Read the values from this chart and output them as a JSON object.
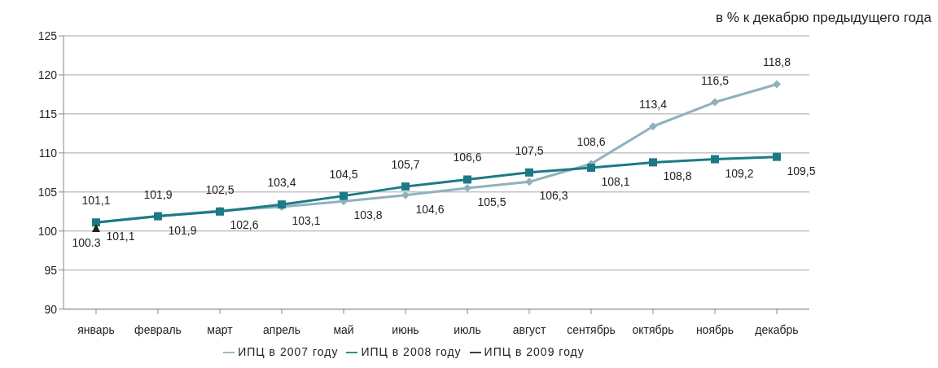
{
  "chart_data": {
    "type": "line",
    "subtitle": "в % к декабрю предыдущего года",
    "categories": [
      "январь",
      "февраль",
      "март",
      "апрель",
      "май",
      "июнь",
      "июль",
      "август",
      "сентябрь",
      "октябрь",
      "ноябрь",
      "декабрь"
    ],
    "series": [
      {
        "name": "ИПЦ в 2007 году",
        "color": "#8fb1bd",
        "marker": "diamond",
        "values": [
          101.1,
          101.9,
          102.6,
          103.1,
          103.8,
          104.6,
          105.5,
          106.3,
          108.6,
          113.4,
          116.5,
          118.8
        ],
        "value_labels": [
          "101,1",
          "101,9",
          "102,6",
          "103,1",
          "103,8",
          "104,6",
          "105,5",
          "106,3",
          "108,6",
          "113,4",
          "116,5",
          "118,8"
        ]
      },
      {
        "name": "ИПЦ в 2008 году",
        "color": "#1c7a86",
        "marker": "square",
        "values": [
          101.1,
          101.9,
          102.5,
          103.4,
          104.5,
          105.7,
          106.6,
          107.5,
          108.1,
          108.8,
          109.2,
          109.5
        ],
        "value_labels": [
          "101,1",
          "101,9",
          "102,5",
          "103,4",
          "104,5",
          "105,7",
          "106,6",
          "107,5",
          "108,1",
          "108,8",
          "109,2",
          "109,5"
        ]
      },
      {
        "name": "ИПЦ в 2009 году",
        "color": "#231f20",
        "marker": "triangle",
        "values": [
          100.3,
          null,
          null,
          null,
          null,
          null,
          null,
          null,
          null,
          null,
          null,
          null
        ],
        "value_labels": [
          "100.3",
          null,
          null,
          null,
          null,
          null,
          null,
          null,
          null,
          null,
          null,
          null
        ]
      }
    ],
    "ylim": [
      90,
      125
    ],
    "yticks": [
      90,
      95,
      100,
      105,
      110,
      115,
      120,
      125
    ],
    "grid": "y",
    "legend": "bottom"
  }
}
